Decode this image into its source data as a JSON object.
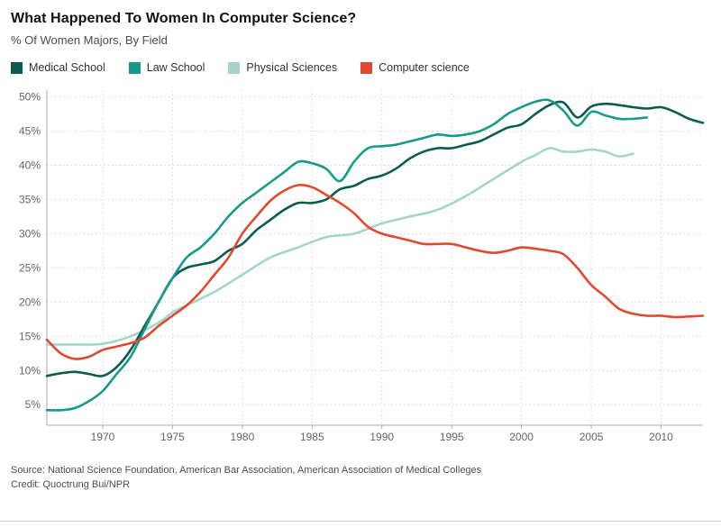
{
  "title": "What Happened To Women In Computer Science?",
  "subtitle": "% Of Women Majors, By Field",
  "footer": {
    "source": "Source: National Science Foundation, American Bar Association, American Association of Medical Colleges",
    "credit": "Credit: Quoctrung Bui/NPR"
  },
  "colors": {
    "medical_school": "#0b5c4f",
    "law_school": "#169a8c",
    "physical_sciences": "#a6d4cd",
    "computer_science": "#e0492f",
    "grid": "#d4d4d4",
    "axis": "#aaaaaa",
    "tick_text": "#666666"
  },
  "chart_data": {
    "type": "line",
    "title": "What Happened To Women In Computer Science?",
    "xlabel": "",
    "ylabel": "% of women majors",
    "xlim": [
      1966,
      2013
    ],
    "ylim": [
      2,
      51
    ],
    "x_ticks": [
      1970,
      1975,
      1980,
      1985,
      1990,
      1995,
      2000,
      2005,
      2010
    ],
    "y_ticks": [
      5,
      10,
      15,
      20,
      25,
      30,
      35,
      40,
      45,
      50
    ],
    "grid": true,
    "legend_position": "top",
    "z_order": [
      2,
      0,
      1,
      3
    ],
    "series": [
      {
        "id": "medical-school",
        "name": "Medical School",
        "color": "#0b5c4f",
        "points": [
          [
            1966,
            9.2
          ],
          [
            1967,
            9.6
          ],
          [
            1968,
            9.8
          ],
          [
            1969,
            9.5
          ],
          [
            1970,
            9.2
          ],
          [
            1971,
            10.5
          ],
          [
            1972,
            13
          ],
          [
            1973,
            16.5
          ],
          [
            1974,
            20
          ],
          [
            1975,
            23.5
          ],
          [
            1976,
            25
          ],
          [
            1977,
            25.5
          ],
          [
            1978,
            26
          ],
          [
            1979,
            27.5
          ],
          [
            1980,
            28.5
          ],
          [
            1981,
            30.5
          ],
          [
            1982,
            32
          ],
          [
            1983,
            33.5
          ],
          [
            1984,
            34.5
          ],
          [
            1985,
            34.5
          ],
          [
            1986,
            35
          ],
          [
            1987,
            36.5
          ],
          [
            1988,
            37
          ],
          [
            1989,
            38
          ],
          [
            1990,
            38.5
          ],
          [
            1991,
            39.5
          ],
          [
            1992,
            41
          ],
          [
            1993,
            42
          ],
          [
            1994,
            42.5
          ],
          [
            1995,
            42.5
          ],
          [
            1996,
            43
          ],
          [
            1997,
            43.5
          ],
          [
            1998,
            44.5
          ],
          [
            1999,
            45.5
          ],
          [
            2000,
            46
          ],
          [
            2001,
            47.5
          ],
          [
            2002,
            48.8
          ],
          [
            2003,
            49.2
          ],
          [
            2004,
            47
          ],
          [
            2005,
            48.6
          ],
          [
            2006,
            49
          ],
          [
            2007,
            48.8
          ],
          [
            2008,
            48.5
          ],
          [
            2009,
            48.3
          ],
          [
            2010,
            48.5
          ],
          [
            2011,
            47.8
          ],
          [
            2012,
            46.8
          ],
          [
            2013,
            46.2
          ]
        ]
      },
      {
        "id": "law-school",
        "name": "Law School",
        "color": "#169a8c",
        "points": [
          [
            1966,
            4.2
          ],
          [
            1967,
            4.2
          ],
          [
            1968,
            4.5
          ],
          [
            1969,
            5.5
          ],
          [
            1970,
            7
          ],
          [
            1971,
            9.5
          ],
          [
            1972,
            12
          ],
          [
            1973,
            16
          ],
          [
            1974,
            20
          ],
          [
            1975,
            23.5
          ],
          [
            1976,
            26.5
          ],
          [
            1977,
            28
          ],
          [
            1978,
            30
          ],
          [
            1979,
            32.5
          ],
          [
            1980,
            34.5
          ],
          [
            1981,
            36
          ],
          [
            1982,
            37.5
          ],
          [
            1983,
            39
          ],
          [
            1984,
            40.5
          ],
          [
            1985,
            40.3
          ],
          [
            1986,
            39.5
          ],
          [
            1987,
            37.7
          ],
          [
            1988,
            40.5
          ],
          [
            1989,
            42.5
          ],
          [
            1990,
            42.8
          ],
          [
            1991,
            43
          ],
          [
            1992,
            43.5
          ],
          [
            1993,
            44
          ],
          [
            1994,
            44.5
          ],
          [
            1995,
            44.3
          ],
          [
            1996,
            44.5
          ],
          [
            1997,
            45
          ],
          [
            1998,
            46
          ],
          [
            1999,
            47.5
          ],
          [
            2000,
            48.5
          ],
          [
            2001,
            49.3
          ],
          [
            2002,
            49.5
          ],
          [
            2003,
            48
          ],
          [
            2004,
            45.8
          ],
          [
            2005,
            47.8
          ],
          [
            2006,
            47.3
          ],
          [
            2007,
            46.8
          ],
          [
            2008,
            46.8
          ],
          [
            2009,
            47
          ]
        ]
      },
      {
        "id": "physical-sciences",
        "name": "Physical Sciences",
        "color": "#a6d4cd",
        "points": [
          [
            1966,
            13.8
          ],
          [
            1968,
            13.8
          ],
          [
            1970,
            13.9
          ],
          [
            1972,
            15
          ],
          [
            1974,
            17
          ],
          [
            1975,
            18.5
          ],
          [
            1976,
            19.5
          ],
          [
            1978,
            21.5
          ],
          [
            1980,
            24
          ],
          [
            1982,
            26.5
          ],
          [
            1984,
            28
          ],
          [
            1986,
            29.5
          ],
          [
            1988,
            30
          ],
          [
            1990,
            31.5
          ],
          [
            1992,
            32.5
          ],
          [
            1994,
            33.5
          ],
          [
            1996,
            35.5
          ],
          [
            1998,
            38
          ],
          [
            2000,
            40.5
          ],
          [
            2001,
            41.5
          ],
          [
            2002,
            42.5
          ],
          [
            2003,
            42
          ],
          [
            2004,
            42
          ],
          [
            2005,
            42.3
          ],
          [
            2006,
            42
          ],
          [
            2007,
            41.3
          ],
          [
            2008,
            41.7
          ]
        ]
      },
      {
        "id": "computer-science",
        "name": "Computer science",
        "color": "#e0492f",
        "points": [
          [
            1966,
            14.5
          ],
          [
            1967,
            12.5
          ],
          [
            1968,
            11.7
          ],
          [
            1969,
            12
          ],
          [
            1970,
            13
          ],
          [
            1971,
            13.5
          ],
          [
            1972,
            14
          ],
          [
            1973,
            14.8
          ],
          [
            1974,
            16.5
          ],
          [
            1975,
            18
          ],
          [
            1976,
            19.5
          ],
          [
            1977,
            21.5
          ],
          [
            1978,
            24
          ],
          [
            1979,
            26.5
          ],
          [
            1980,
            30
          ],
          [
            1981,
            32.5
          ],
          [
            1982,
            34.8
          ],
          [
            1983,
            36.3
          ],
          [
            1984,
            37.1
          ],
          [
            1985,
            36.8
          ],
          [
            1986,
            35.7
          ],
          [
            1987,
            34.5
          ],
          [
            1988,
            33
          ],
          [
            1989,
            31
          ],
          [
            1990,
            30
          ],
          [
            1991,
            29.5
          ],
          [
            1992,
            29
          ],
          [
            1993,
            28.5
          ],
          [
            1994,
            28.5
          ],
          [
            1995,
            28.5
          ],
          [
            1996,
            28
          ],
          [
            1997,
            27.5
          ],
          [
            1998,
            27.2
          ],
          [
            1999,
            27.5
          ],
          [
            2000,
            28
          ],
          [
            2001,
            27.8
          ],
          [
            2002,
            27.5
          ],
          [
            2003,
            27
          ],
          [
            2004,
            25
          ],
          [
            2005,
            22.5
          ],
          [
            2006,
            20.8
          ],
          [
            2007,
            19
          ],
          [
            2008,
            18.3
          ],
          [
            2009,
            18
          ],
          [
            2010,
            18
          ],
          [
            2011,
            17.8
          ],
          [
            2012,
            17.9
          ],
          [
            2013,
            18
          ]
        ]
      }
    ]
  }
}
